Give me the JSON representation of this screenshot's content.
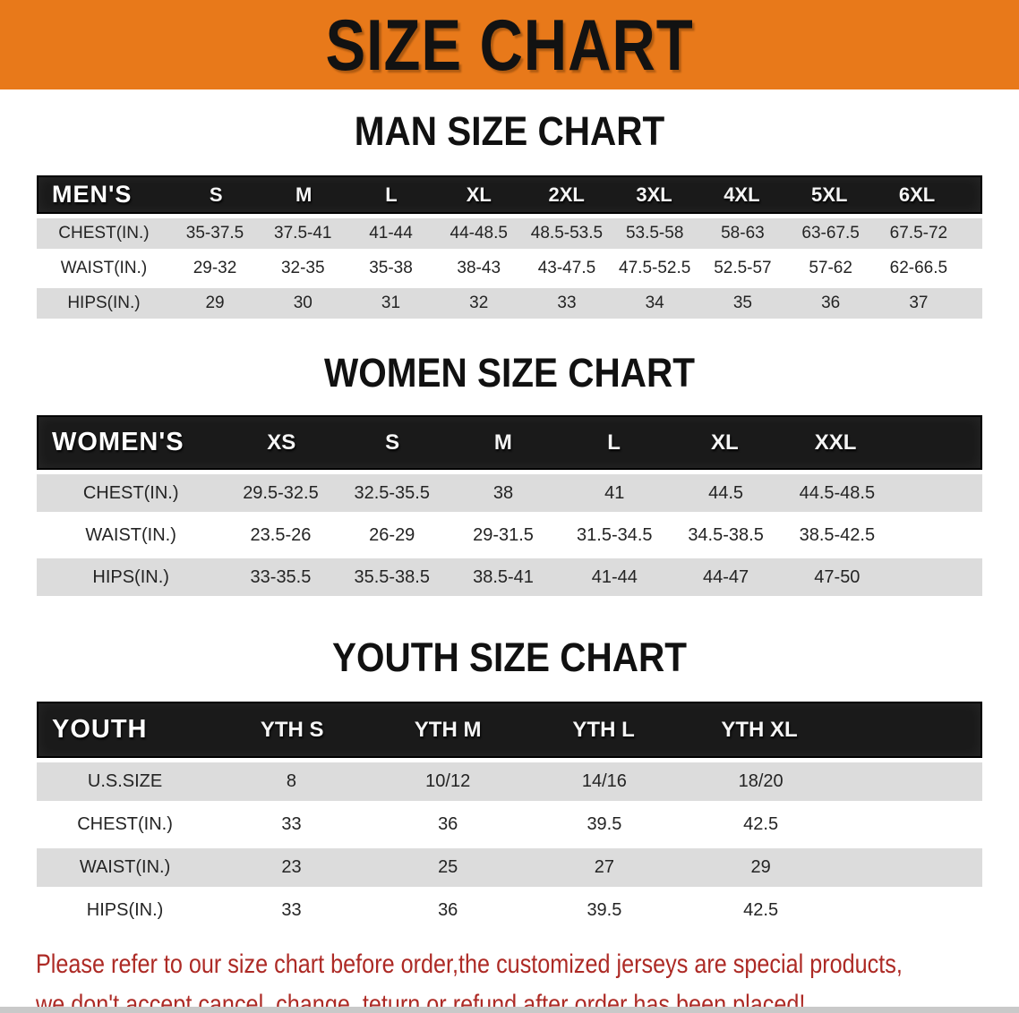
{
  "banner": {
    "title": "SIZE CHART"
  },
  "colors": {
    "banner_bg": "#E8791A",
    "bar_bg": "#1A1A1A",
    "row_shade": "#DCDCDC",
    "disclaimer_red": "#AD2A25"
  },
  "sections": [
    {
      "heading": "MAN SIZE CHART",
      "table": {
        "label": "MEN'S",
        "columns": [
          "S",
          "M",
          "L",
          "XL",
          "2XL",
          "3XL",
          "4XL",
          "5XL",
          "6XL"
        ],
        "rows": [
          {
            "label": "CHEST(IN.)",
            "values": [
              "35-37.5",
              "37.5-41",
              "41-44",
              "44-48.5",
              "48.5-53.5",
              "53.5-58",
              "58-63",
              "63-67.5",
              "67.5-72"
            ]
          },
          {
            "label": "WAIST(IN.)",
            "values": [
              "29-32",
              "32-35",
              "35-38",
              "38-43",
              "43-47.5",
              "47.5-52.5",
              "52.5-57",
              "57-62",
              "62-66.5"
            ]
          },
          {
            "label": "HIPS(IN.)",
            "values": [
              "29",
              "30",
              "31",
              "32",
              "33",
              "34",
              "35",
              "36",
              "37"
            ]
          }
        ]
      }
    },
    {
      "heading": "WOMEN SIZE CHART",
      "table": {
        "label": "WOMEN'S",
        "columns": [
          "XS",
          "S",
          "M",
          "L",
          "XL",
          "XXL"
        ],
        "rows": [
          {
            "label": "CHEST(IN.)",
            "values": [
              "29.5-32.5",
              "32.5-35.5",
              "38",
              "41",
              "44.5",
              "44.5-48.5"
            ]
          },
          {
            "label": "WAIST(IN.)",
            "values": [
              "23.5-26",
              "26-29",
              "29-31.5",
              "31.5-34.5",
              "34.5-38.5",
              "38.5-42.5"
            ]
          },
          {
            "label": "HIPS(IN.)",
            "values": [
              "33-35.5",
              "35.5-38.5",
              "38.5-41",
              "41-44",
              "44-47",
              "47-50"
            ]
          }
        ]
      }
    },
    {
      "heading": "YOUTH SIZE CHART",
      "table": {
        "label": "YOUTH",
        "columns": [
          "YTH S",
          "YTH M",
          "YTH L",
          "YTH XL"
        ],
        "rows": [
          {
            "label": "U.S.SIZE",
            "values": [
              "8",
              "10/12",
              "14/16",
              "18/20"
            ]
          },
          {
            "label": "CHEST(IN.)",
            "values": [
              "33",
              "36",
              "39.5",
              "42.5"
            ]
          },
          {
            "label": "WAIST(IN.)",
            "values": [
              "23",
              "25",
              "27",
              "29"
            ]
          },
          {
            "label": "HIPS(IN.)",
            "values": [
              "33",
              "36",
              "39.5",
              "42.5"
            ]
          }
        ]
      }
    }
  ],
  "disclaimer": {
    "line1": "Please refer to our size chart before order,the customized jerseys are special products,",
    "line2": "we don't accept cancel, change, teturn or refund after order has been placed!"
  }
}
